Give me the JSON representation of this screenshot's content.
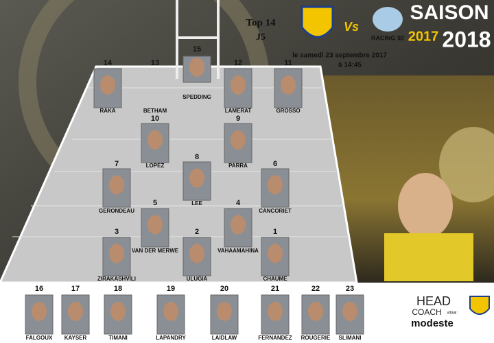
{
  "header": {
    "competition": "Top 14",
    "round": "J5",
    "versus": "Vs",
    "away_logo_text": "RACING 92",
    "date": "le samedi 23 septembre 2017",
    "time": "à  14:45",
    "season": {
      "word": "SAISON",
      "start": "2017",
      "end": "2018"
    }
  },
  "starters": [
    {
      "number": "15",
      "name": "SPEDDING"
    },
    {
      "number": "14",
      "name": "RAKA"
    },
    {
      "number": "13",
      "name": "BETHAM"
    },
    {
      "number": "12",
      "name": "LAMERAT"
    },
    {
      "number": "11",
      "name": "GROSSO"
    },
    {
      "number": "10",
      "name": "LOPEZ"
    },
    {
      "number": "9",
      "name": "PARRA"
    },
    {
      "number": "8",
      "name": "LEE"
    },
    {
      "number": "7",
      "name": "GERONDEAU"
    },
    {
      "number": "6",
      "name": "CANCORIET"
    },
    {
      "number": "5",
      "name": "VAN DER MERWE"
    },
    {
      "number": "4",
      "name": "VAHAAMAHINA"
    },
    {
      "number": "3",
      "name": "ZIRAKASHVILI"
    },
    {
      "number": "2",
      "name": "ULUGIA"
    },
    {
      "number": "1",
      "name": "CHAUME"
    }
  ],
  "substitutes": [
    {
      "number": "16",
      "name": "FALGOUX"
    },
    {
      "number": "17",
      "name": "KAYSER"
    },
    {
      "number": "18",
      "name": "TIMANI"
    },
    {
      "number": "19",
      "name": "LAPANDRY"
    },
    {
      "number": "20",
      "name": "LAIDLAW"
    },
    {
      "number": "21",
      "name": "FERNANDEZ"
    },
    {
      "number": "22",
      "name": "ROUGERIE"
    },
    {
      "number": "23",
      "name": "SLIMANI"
    }
  ],
  "coach": {
    "line1": "HEAD",
    "line2": "COACH",
    "note": "vitaal :",
    "name": "modeste"
  }
}
